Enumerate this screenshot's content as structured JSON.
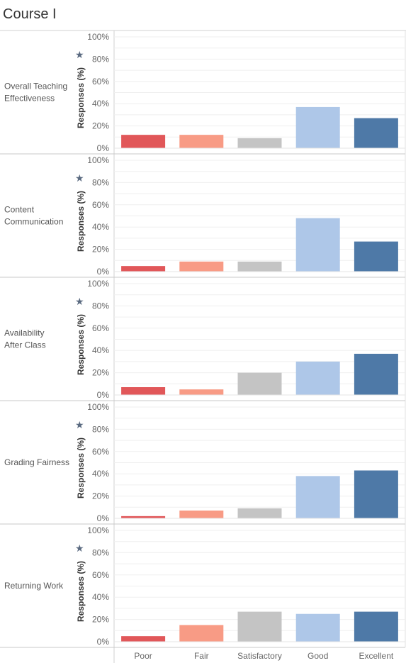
{
  "title": "Course I",
  "colors": {
    "Poor": "#e15759",
    "Fair": "#f89b85",
    "Satisfactory": "#c4c4c4",
    "Good": "#aec7e8",
    "Excellent": "#4e79a7"
  },
  "icons": {
    "pin": "pin-icon"
  },
  "chart_data": {
    "type": "bar",
    "categories": [
      "Poor",
      "Fair",
      "Satisfactory",
      "Good",
      "Excellent"
    ],
    "ylabel": "Responses (%)",
    "ylim": [
      0,
      100
    ],
    "yticks": [
      "0%",
      "20%",
      "40%",
      "60%",
      "80%",
      "100%"
    ],
    "grid": true,
    "panels": [
      {
        "label": "Overall Teaching Effectiveness",
        "values": [
          12,
          12,
          9,
          37,
          27
        ]
      },
      {
        "label": "Content Communication",
        "values": [
          5,
          9,
          9,
          48,
          27
        ]
      },
      {
        "label": "Availability After Class",
        "values": [
          7,
          5,
          20,
          30,
          37
        ]
      },
      {
        "label": "Grading Fairness",
        "values": [
          2,
          7,
          9,
          38,
          43
        ]
      },
      {
        "label": "Returning Work",
        "values": [
          5,
          15,
          27,
          25,
          27
        ]
      }
    ]
  }
}
